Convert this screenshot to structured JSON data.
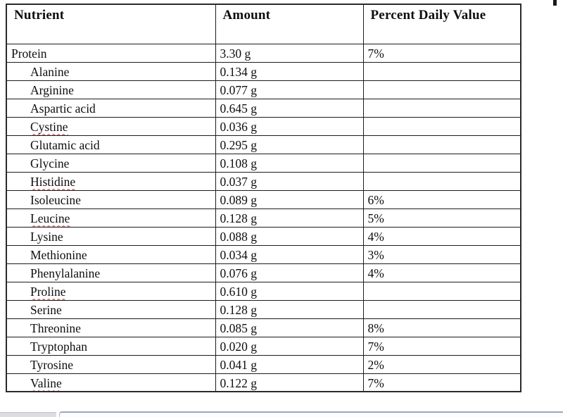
{
  "table": {
    "columns": [
      "Nutrient",
      "Amount",
      "Percent Daily Value"
    ],
    "rows": [
      {
        "nutrient": "Protein",
        "amount": "3.30 g",
        "pdv": "7%",
        "indent": false,
        "misspelled": false
      },
      {
        "nutrient": "Alanine",
        "amount": "0.134 g",
        "pdv": "",
        "indent": true,
        "misspelled": false
      },
      {
        "nutrient": "Arginine",
        "amount": "0.077 g",
        "pdv": "",
        "indent": true,
        "misspelled": false
      },
      {
        "nutrient": "Aspartic acid",
        "amount": "0.645 g",
        "pdv": "",
        "indent": true,
        "misspelled": false
      },
      {
        "nutrient": "Cystine",
        "amount": "0.036 g",
        "pdv": "",
        "indent": true,
        "misspelled": true
      },
      {
        "nutrient": "Glutamic acid",
        "amount": "0.295 g",
        "pdv": "",
        "indent": true,
        "misspelled": false
      },
      {
        "nutrient": "Glycine",
        "amount": "0.108 g",
        "pdv": "",
        "indent": true,
        "misspelled": false
      },
      {
        "nutrient": "Histidine",
        "amount": "0.037 g",
        "pdv": "",
        "indent": true,
        "misspelled": true
      },
      {
        "nutrient": "Isoleucine",
        "amount": "0.089 g",
        "pdv": "6%",
        "indent": true,
        "misspelled": false
      },
      {
        "nutrient": "Leucine",
        "amount": "0.128 g",
        "pdv": "5%",
        "indent": true,
        "misspelled": true
      },
      {
        "nutrient": "Lysine",
        "amount": "0.088 g",
        "pdv": "4%",
        "indent": true,
        "misspelled": false
      },
      {
        "nutrient": "Methionine",
        "amount": "0.034 g",
        "pdv": "3%",
        "indent": true,
        "misspelled": false
      },
      {
        "nutrient": "Phenylalanine",
        "amount": "0.076 g",
        "pdv": "4%",
        "indent": true,
        "misspelled": false
      },
      {
        "nutrient": "Proline",
        "amount": "0.610 g",
        "pdv": "",
        "indent": true,
        "misspelled": true
      },
      {
        "nutrient": "Serine",
        "amount": "0.128 g",
        "pdv": "",
        "indent": true,
        "misspelled": false
      },
      {
        "nutrient": "Threonine",
        "amount": "0.085 g",
        "pdv": "8%",
        "indent": true,
        "misspelled": false
      },
      {
        "nutrient": "Tryptophan",
        "amount": "0.020 g",
        "pdv": "7%",
        "indent": true,
        "misspelled": false
      },
      {
        "nutrient": "Tyrosine",
        "amount": "0.041 g",
        "pdv": "2%",
        "indent": true,
        "misspelled": false
      },
      {
        "nutrient": "Valine",
        "amount": "0.122 g",
        "pdv": "7%",
        "indent": true,
        "misspelled": true
      }
    ]
  },
  "colors": {
    "table_border": "#1c1c1c",
    "text": "#0e0e0e",
    "spellcheck_squiggle": "#c0392b",
    "bottom_bar_thumb": "#dddde1",
    "bottom_bar_panel_border": "#9aa8be",
    "bottom_bar_panel_fill": "#fafcfe"
  }
}
